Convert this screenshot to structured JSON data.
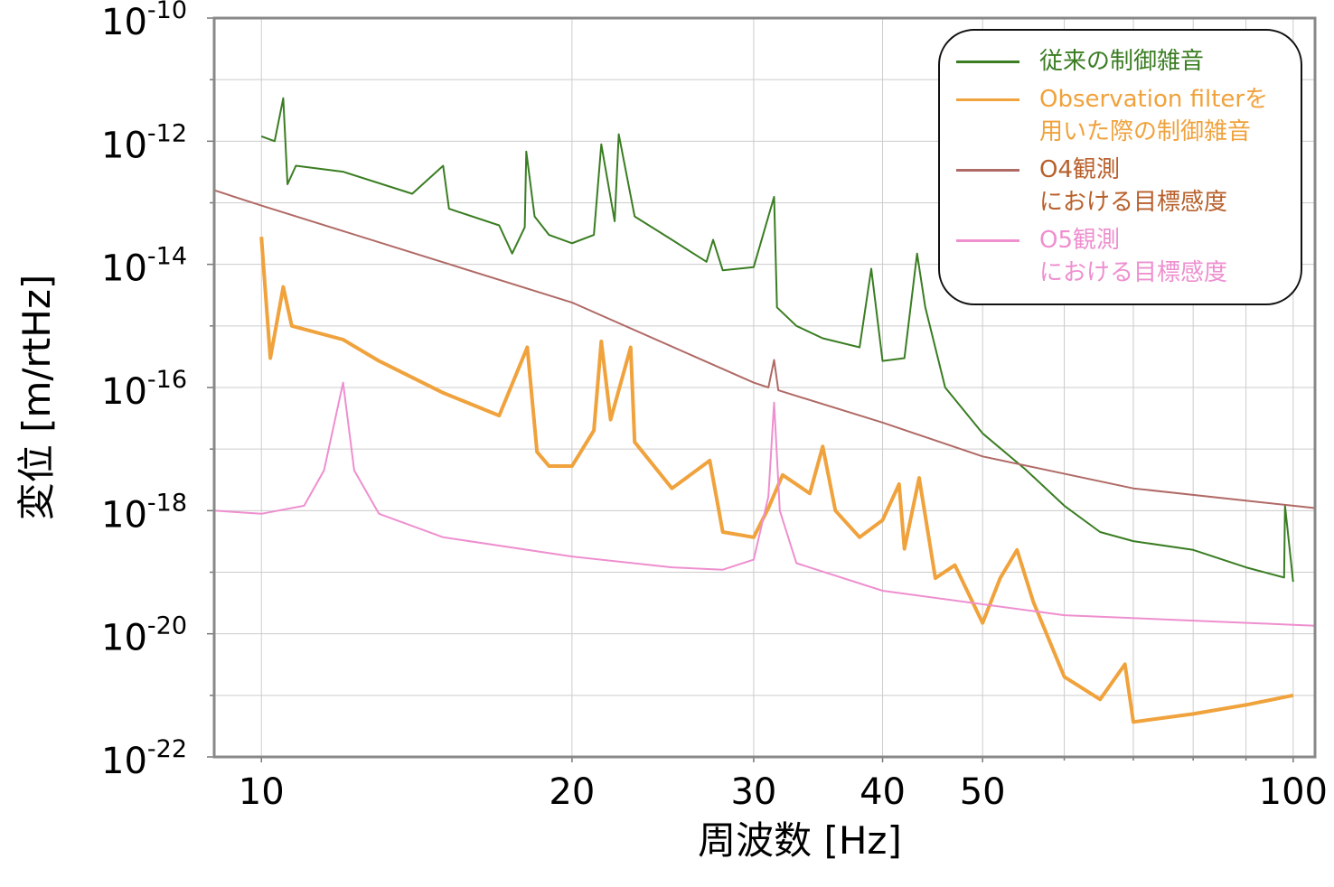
{
  "chart_data": {
    "type": "line",
    "xlabel": "周波数 [Hz]",
    "ylabel": "変位 [m/rtHz]",
    "xscale": "log",
    "yscale": "log",
    "grid": true,
    "legend": "upper right",
    "xlim": [
      9,
      105
    ],
    "ylim": [
      1e-22,
      1e-10
    ],
    "xticks": [
      10,
      20,
      30,
      40,
      50,
      100
    ],
    "xminorticks": [
      60,
      70,
      80,
      90
    ],
    "yticks": [
      {
        "value": 1e-10,
        "label": "10-10"
      },
      {
        "value": 1e-12,
        "label": "10-12"
      },
      {
        "value": 1e-14,
        "label": "10-14"
      },
      {
        "value": 1e-16,
        "label": "10-16"
      },
      {
        "value": 1e-18,
        "label": "10-18"
      },
      {
        "value": 1e-20,
        "label": "10-20"
      },
      {
        "value": 1e-22,
        "label": "10-22"
      }
    ],
    "yminorticks": [
      1e-11,
      1e-13,
      1e-15,
      1e-17,
      1e-19,
      1e-21
    ],
    "series": [
      {
        "name": "従来の制御雑音",
        "color": "#3a7d22",
        "width": 2,
        "x": [
          10,
          10.3,
          10.5,
          10.6,
          10.8,
          12,
          14,
          15,
          15.2,
          17,
          17.5,
          18,
          18.06,
          18.4,
          19,
          20,
          21,
          21.35,
          22,
          22.2,
          23,
          25,
          27,
          27.4,
          28,
          30,
          31.4,
          31.6,
          33,
          35,
          38,
          39,
          40,
          42,
          43.2,
          44,
          46,
          50,
          55,
          60,
          65,
          70,
          80,
          90,
          98,
          98.2,
          100
        ],
        "values": [
          1.2e-12,
          1e-12,
          5e-12,
          2e-13,
          4e-13,
          3.2e-13,
          1.4e-13,
          4e-13,
          8e-14,
          4.3e-14,
          1.5e-14,
          4e-14,
          6.8e-13,
          6e-14,
          3e-14,
          2.2e-14,
          3e-14,
          8.9e-13,
          5e-14,
          1.3e-12,
          6e-14,
          2.5e-14,
          1.1e-14,
          2.5e-14,
          8e-15,
          9e-15,
          1.25e-13,
          2e-15,
          1e-15,
          6.3e-16,
          4.5e-16,
          8.5e-15,
          2.7e-16,
          3e-16,
          1.5e-14,
          2e-15,
          1e-16,
          1.8e-17,
          4.7e-18,
          1.2e-18,
          4.5e-19,
          3.2e-19,
          2.3e-19,
          1.2e-19,
          8.2e-20,
          1.2e-18,
          7e-20
        ]
      },
      {
        "name": "Observation filterを\n用いた際の制御雑音",
        "color": "#f0a23c",
        "width": 4,
        "x": [
          10,
          10.1,
          10.2,
          10.5,
          10.7,
          12,
          13,
          15,
          17,
          18.1,
          18.5,
          19,
          20,
          21,
          21.35,
          21.8,
          22.8,
          23,
          25,
          27.2,
          28,
          30,
          31,
          32,
          34,
          35,
          36,
          38,
          40,
          41.5,
          42,
          43.4,
          45,
          47,
          50,
          52,
          54,
          56,
          60,
          65,
          68.7,
          70,
          80,
          90,
          100
        ],
        "values": [
          2.8e-14,
          2.8e-15,
          3e-16,
          4.3e-15,
          1e-15,
          6e-16,
          2.7e-16,
          8.2e-17,
          3.5e-17,
          4.5e-16,
          9e-18,
          5.3e-18,
          5.3e-18,
          2e-17,
          5.6e-16,
          3e-17,
          4.5e-16,
          1.3e-17,
          2.3e-18,
          6.5e-18,
          4.5e-19,
          3.7e-19,
          1.1e-18,
          3.8e-18,
          1.9e-18,
          1.1e-17,
          1e-18,
          3.7e-19,
          7e-19,
          2.7e-18,
          2.4e-19,
          3.4e-18,
          8e-20,
          1.3e-19,
          1.5e-20,
          8e-20,
          2.3e-19,
          3.3e-20,
          2e-21,
          8.6e-22,
          3.2e-21,
          3.7e-22,
          5e-22,
          7e-22,
          1e-21
        ]
      },
      {
        "name": "O4観測\nにおける目標感度",
        "color": "#b06a66",
        "text_color": "#b8602c",
        "width": 2,
        "x": [
          9,
          10,
          20,
          30,
          31,
          31.4,
          31.7,
          40,
          50,
          70,
          100,
          105
        ],
        "values": [
          1.6e-13,
          9e-14,
          2.4e-15,
          1.2e-16,
          1e-16,
          2.8e-16,
          9e-17,
          2.7e-17,
          7.6e-18,
          2.3e-18,
          1.2e-18,
          1.1e-18
        ]
      },
      {
        "name": "O5観測\nにおける目標感度",
        "color": "#ee8fcf",
        "width": 2,
        "x": [
          9,
          10,
          11,
          11.5,
          12,
          12.3,
          13,
          15,
          20,
          25,
          28,
          30,
          31,
          31.4,
          31.8,
          33,
          40,
          60,
          100,
          105
        ],
        "values": [
          1e-18,
          8.9e-19,
          1.2e-18,
          4.5e-18,
          1.2e-16,
          4.5e-18,
          8.9e-19,
          3.7e-19,
          1.8e-19,
          1.2e-19,
          1.1e-19,
          1.6e-19,
          1.7e-18,
          5.7e-17,
          1e-18,
          1.4e-19,
          5e-20,
          2e-20,
          1.4e-20,
          1.35e-20
        ]
      }
    ]
  }
}
